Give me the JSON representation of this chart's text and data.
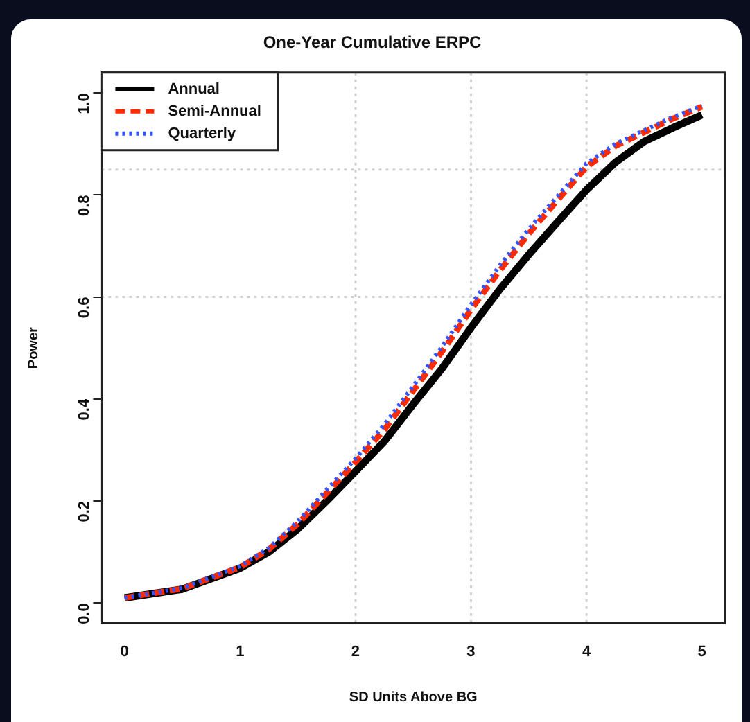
{
  "chart_data": {
    "type": "line",
    "title": "One-Year Cumulative ERPC",
    "xlabel": "SD Units Above BG",
    "ylabel": "Power",
    "x": [
      0,
      0.5,
      1,
      1.25,
      1.5,
      1.75,
      2,
      2.25,
      2.5,
      2.75,
      3,
      3.25,
      3.5,
      3.75,
      4,
      4.25,
      4.5,
      4.75,
      5
    ],
    "series": [
      {
        "name": "Annual",
        "color": "#000000",
        "line_style": "solid",
        "values": [
          0.01,
          0.027,
          0.068,
          0.1,
          0.145,
          0.2,
          0.258,
          0.317,
          0.39,
          0.46,
          0.54,
          0.615,
          0.683,
          0.747,
          0.81,
          0.864,
          0.905,
          0.932,
          0.957
        ]
      },
      {
        "name": "Semi-Annual",
        "color": "#ff2a00",
        "line_style": "dashed",
        "values": [
          0.01,
          0.028,
          0.07,
          0.105,
          0.155,
          0.215,
          0.276,
          0.34,
          0.416,
          0.493,
          0.575,
          0.652,
          0.724,
          0.79,
          0.855,
          0.896,
          0.923,
          0.95,
          0.973
        ]
      },
      {
        "name": "Quarterly",
        "color": "#3355ff",
        "line_style": "dotted",
        "values": [
          0.01,
          0.029,
          0.072,
          0.108,
          0.16,
          0.222,
          0.283,
          0.35,
          0.425,
          0.503,
          0.585,
          0.662,
          0.733,
          0.798,
          0.862,
          0.9,
          0.927,
          0.953,
          0.975
        ]
      }
    ],
    "xlim": [
      -0.2,
      5.2
    ],
    "ylim": [
      -0.04,
      1.04
    ],
    "xticks": [
      0,
      1,
      2,
      3,
      4,
      5
    ],
    "yticks": [
      {
        "value": 0,
        "label": "0.0"
      },
      {
        "value": 0.2,
        "label": "0.2"
      },
      {
        "value": 0.4,
        "label": "0.4"
      },
      {
        "value": 0.6,
        "label": "0.6"
      },
      {
        "value": 0.8,
        "label": "0.8"
      },
      {
        "value": 1,
        "label": "1.0"
      }
    ],
    "ref_lines": [
      {
        "axis": "x",
        "value": 2,
        "color": "#d0d0d0",
        "line_style": "dotted"
      },
      {
        "axis": "x",
        "value": 3,
        "color": "#d0d0d0",
        "line_style": "dotted"
      },
      {
        "axis": "x",
        "value": 4,
        "color": "#d0d0d0",
        "line_style": "dotted"
      },
      {
        "axis": "y",
        "value": 0.6,
        "color": "#d0d0d0",
        "line_style": "dotted"
      },
      {
        "axis": "y",
        "value": 0.85,
        "color": "#d0d0d0",
        "line_style": "dotted"
      }
    ],
    "legend": "top left",
    "marker": "none",
    "grid": false
  }
}
